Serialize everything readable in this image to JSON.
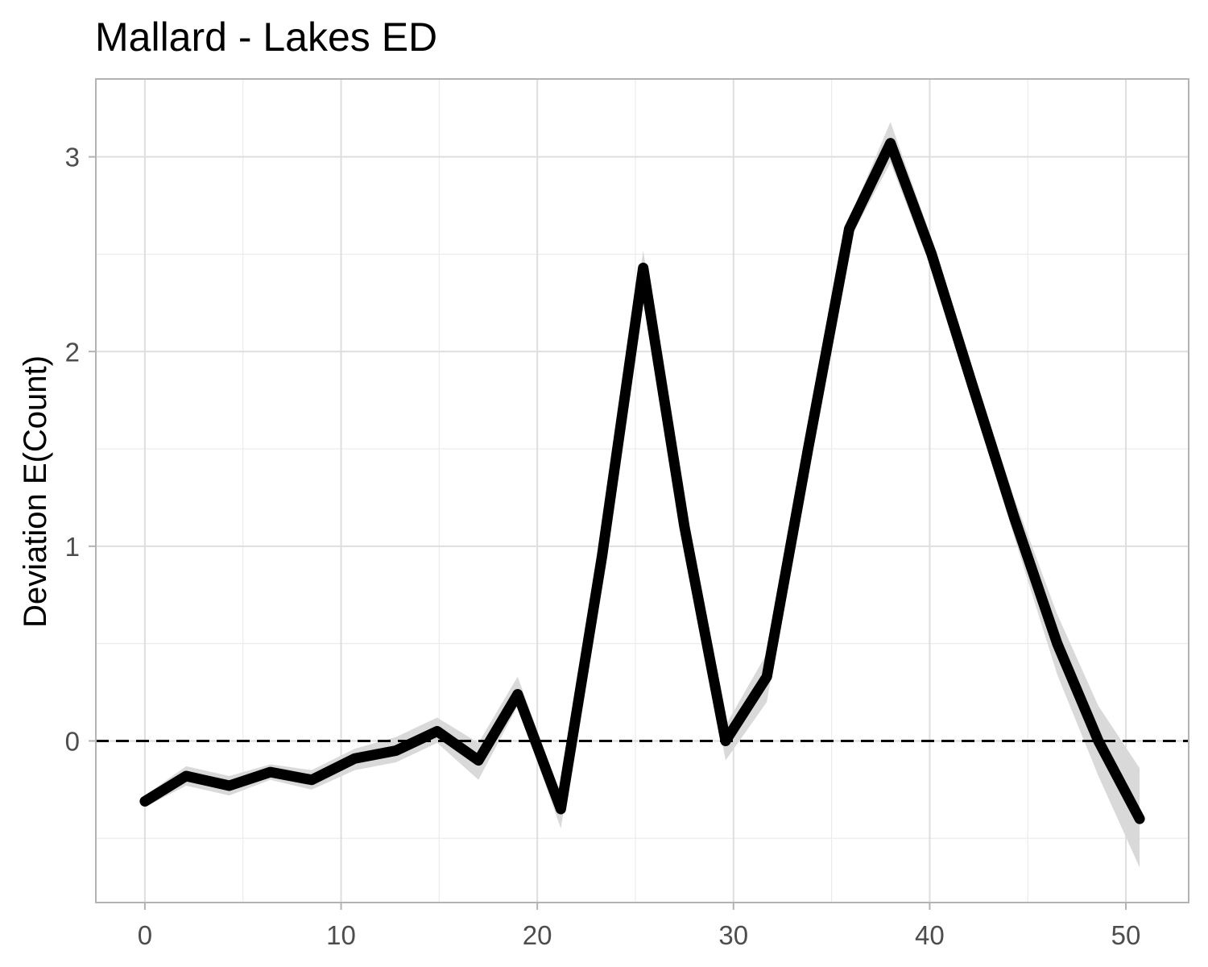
{
  "chart_data": {
    "type": "line",
    "title": "Mallard - Lakes ED",
    "xlabel": "",
    "ylabel": "Deviation E(Count)",
    "xlim": [
      -2.5,
      53.2
    ],
    "ylim": [
      -0.83,
      3.4
    ],
    "x_ticks": [
      0,
      10,
      20,
      30,
      40,
      50
    ],
    "x_tick_labels": [
      "0",
      "10",
      "20",
      "30",
      "40",
      "50"
    ],
    "y_ticks": [
      0,
      1,
      2,
      3
    ],
    "y_tick_labels": [
      "0",
      "1",
      "2",
      "3"
    ],
    "grid": true,
    "reference_line": {
      "y": 0,
      "style": "dashed"
    },
    "series": [
      {
        "x": [
          0,
          2.1,
          4.3,
          6.4,
          8.5,
          10.7,
          12.8,
          14.9,
          17.0,
          19.0,
          21.2,
          23.3,
          25.4,
          27.5,
          29.6,
          31.7,
          33.8,
          35.9,
          38.0,
          40.1,
          42.2,
          44.3,
          46.5,
          48.6,
          50.7
        ],
        "y": [
          -0.31,
          -0.18,
          -0.23,
          -0.16,
          -0.2,
          -0.09,
          -0.05,
          0.05,
          -0.1,
          0.24,
          -0.35,
          0.95,
          2.43,
          1.1,
          0.0,
          0.33,
          1.5,
          2.63,
          3.07,
          2.5,
          1.82,
          1.15,
          0.5,
          0.0,
          -0.4
        ],
        "lower": [
          -0.34,
          -0.23,
          -0.28,
          -0.2,
          -0.25,
          -0.15,
          -0.11,
          -0.01,
          -0.2,
          0.18,
          -0.45,
          0.88,
          2.38,
          1.02,
          -0.1,
          0.2,
          1.42,
          2.57,
          2.97,
          2.42,
          1.74,
          1.05,
          0.34,
          -0.18,
          -0.65
        ],
        "upper": [
          -0.28,
          -0.13,
          -0.18,
          -0.12,
          -0.15,
          -0.04,
          0.02,
          0.12,
          -0.01,
          0.33,
          -0.28,
          1.02,
          2.52,
          1.18,
          0.08,
          0.45,
          1.58,
          2.68,
          3.18,
          2.58,
          1.9,
          1.25,
          0.65,
          0.18,
          -0.14
        ]
      }
    ],
    "colors": {
      "line": "#000000",
      "band": "#d9d9d9",
      "grid_major": "#dedede",
      "grid_minor": "#ebebeb",
      "panel_border": "#b3b3b3",
      "tick_text": "#4d4d4d"
    }
  }
}
